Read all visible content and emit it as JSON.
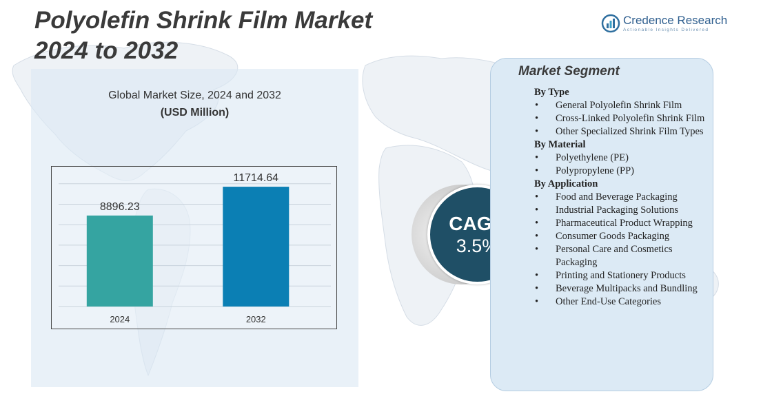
{
  "page": {
    "title_line1": "Polyolefin Shrink Film Market",
    "title_line2": "2024 to 2032"
  },
  "logo": {
    "name": "Credence Research",
    "tagline": "Actionable Insights Delivered",
    "icon": "bar-chart-circle-icon"
  },
  "chart_data": {
    "type": "bar",
    "title": "Global Market Size, 2024 and 2032",
    "unit": "(USD Million)",
    "categories": [
      "2024",
      "2032"
    ],
    "values": [
      8896.23,
      11714.64
    ],
    "value_labels": [
      "8896.23",
      "11714.64"
    ],
    "colors": [
      "#35a4a1",
      "#0b7fb4"
    ],
    "ylim": [
      0,
      13000
    ],
    "grid": true
  },
  "cagr": {
    "label": "CAGR",
    "value": "3.5%"
  },
  "segments": {
    "title": "Market Segment",
    "groups": [
      {
        "heading": "By Type",
        "items": [
          "General Polyolefin Shrink Film",
          "Cross-Linked Polyolefin Shrink Film",
          "Other Specialized Shrink Film Types"
        ]
      },
      {
        "heading": "By Material",
        "items": [
          "Polyethylene (PE)",
          "Polypropylene (PP)"
        ]
      },
      {
        "heading": "By Application",
        "items": [
          "Food and Beverage Packaging",
          "Industrial Packaging Solutions",
          "Pharmaceutical Product Wrapping",
          "Consumer Goods Packaging",
          "Personal Care and Cosmetics Packaging",
          "Printing and Stationery Products",
          "Beverage Multipacks and Bundling",
          "Other End-Use Categories"
        ]
      }
    ]
  },
  "colors": {
    "panel_bg": "#dce9f4",
    "cagr_circle": "#1f4f66",
    "title_text": "#3a3a3a"
  }
}
